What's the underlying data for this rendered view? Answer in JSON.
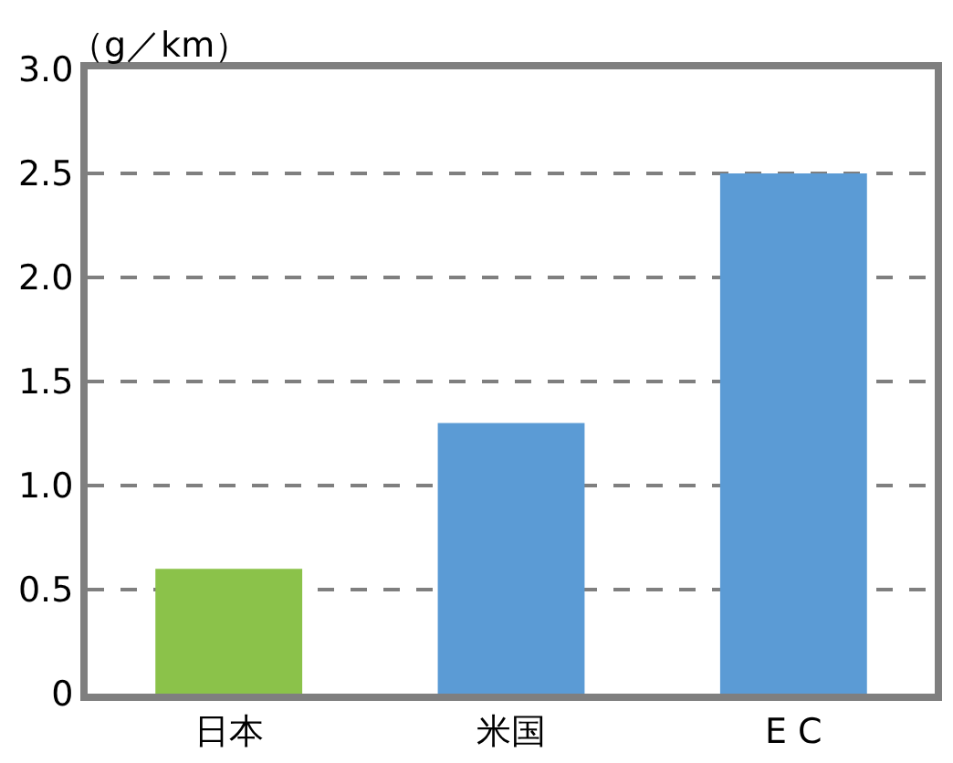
{
  "chart_data": {
    "type": "bar",
    "ylabel": "（g／km）",
    "categories": [
      "日本",
      "米国",
      "E C"
    ],
    "values": [
      0.6,
      1.3,
      2.5
    ],
    "colors": [
      "#8bc24a",
      "#5b9bd5",
      "#5b9bd5"
    ],
    "ylim": [
      0,
      3
    ],
    "yticks": [
      0,
      0.5,
      {
        "value": 1,
        "label": "1.0"
      },
      1.5,
      {
        "value": 2,
        "label": "2.0"
      },
      2.5,
      {
        "value": 3,
        "label": "3.0"
      }
    ],
    "grid": "y",
    "line_style": "dashed"
  }
}
